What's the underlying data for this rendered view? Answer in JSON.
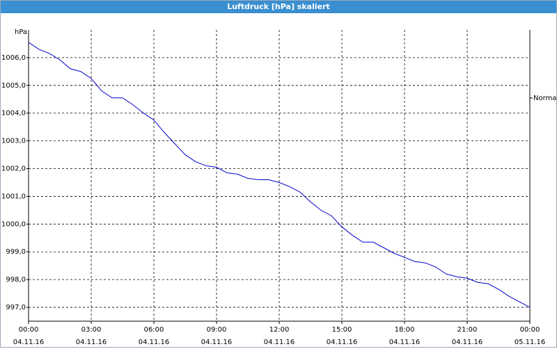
{
  "chart_data": {
    "type": "line",
    "title": "Luftdruck [hPa] skaliert",
    "y_label": "hPa",
    "x": [
      0,
      0.5,
      1,
      1.5,
      2,
      2.5,
      3,
      3.5,
      4,
      4.5,
      5,
      5.5,
      6,
      6.5,
      7,
      7.5,
      8,
      8.5,
      9,
      9.5,
      10,
      10.5,
      11,
      11.5,
      12,
      12.5,
      13,
      13.5,
      14,
      14.5,
      15,
      15.5,
      16,
      16.5,
      17,
      17.5,
      18,
      18.5,
      19,
      19.5,
      20,
      20.5,
      21,
      21.5,
      22,
      22.5,
      23,
      23.5,
      24
    ],
    "series": [
      {
        "name": "Normal",
        "color": "#0000cc",
        "values": [
          1006.55,
          1006.3,
          1006.15,
          1005.92,
          1005.6,
          1005.5,
          1005.25,
          1004.8,
          1004.55,
          1004.55,
          1004.3,
          1004.0,
          1003.75,
          1003.3,
          1002.9,
          1002.5,
          1002.25,
          1002.1,
          1002.05,
          1001.85,
          1001.8,
          1001.65,
          1001.6,
          1001.6,
          1001.5,
          1001.35,
          1001.15,
          1000.8,
          1000.5,
          1000.3,
          999.9,
          999.6,
          999.35,
          999.35,
          999.15,
          998.95,
          998.8,
          998.65,
          998.6,
          998.45,
          998.2,
          998.1,
          998.05,
          997.9,
          997.85,
          997.65,
          997.4,
          997.2,
          997.0
        ]
      }
    ],
    "xlim": [
      0,
      24
    ],
    "xticks": [
      {
        "value": 0,
        "label": "00:00\n04.11.16"
      },
      {
        "value": 3,
        "label": "03:00\n04.11.16"
      },
      {
        "value": 6,
        "label": "06:00\n04.11.16"
      },
      {
        "value": 9,
        "label": "09:00\n04.11.16"
      },
      {
        "value": 12,
        "label": "12:00\n04.11.16"
      },
      {
        "value": 15,
        "label": "15:00\n04.11.16"
      },
      {
        "value": 18,
        "label": "18:00\n04.11.16"
      },
      {
        "value": 21,
        "label": "21:00\n04.11.16"
      },
      {
        "value": 24,
        "label": "00:00\n05.11.16"
      }
    ],
    "ylim": [
      996.5,
      1007
    ],
    "yticks": [
      {
        "value": 997,
        "label": "997,0"
      },
      {
        "value": 998,
        "label": "998,0"
      },
      {
        "value": 999,
        "label": "999,0"
      },
      {
        "value": 1000,
        "label": "1000,0"
      },
      {
        "value": 1001,
        "label": "1001,0"
      },
      {
        "value": 1002,
        "label": "1002,0"
      },
      {
        "value": 1003,
        "label": "1003,0"
      },
      {
        "value": 1004,
        "label": "1004,0"
      },
      {
        "value": 1005,
        "label": "1005,0"
      },
      {
        "value": 1006,
        "label": "1006,0"
      }
    ],
    "grid": true,
    "legend": "right"
  }
}
